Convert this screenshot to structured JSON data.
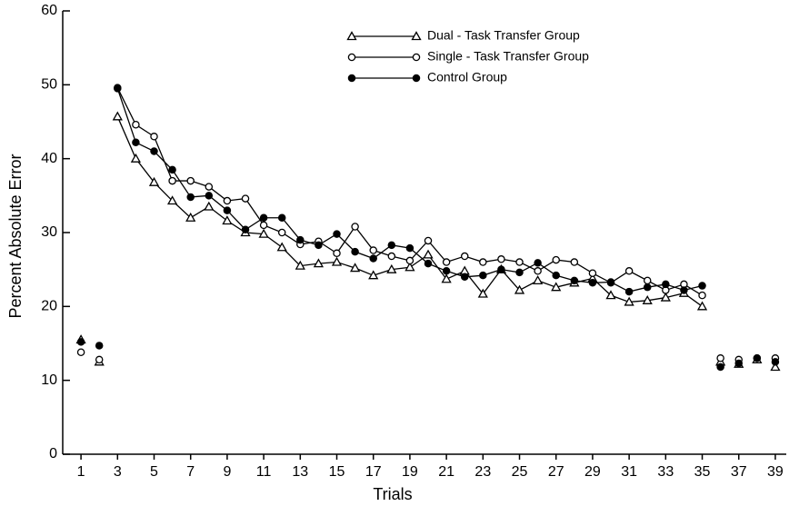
{
  "chart_data": {
    "type": "line",
    "xlabel": "Trials",
    "ylabel": "Percent Absolute Error",
    "x": [
      1,
      null,
      2,
      null,
      3,
      4,
      5,
      6,
      7,
      8,
      9,
      10,
      11,
      12,
      13,
      14,
      15,
      16,
      17,
      18,
      19,
      20,
      21,
      22,
      23,
      24,
      25,
      26,
      27,
      28,
      29,
      30,
      31,
      32,
      33,
      34,
      35,
      null,
      36,
      null,
      37,
      null,
      38,
      null,
      39
    ],
    "series": [
      {
        "name": "Dual - Task Transfer Group",
        "color": "#000000",
        "marker": "triangle",
        "values": [
          15.5,
          null,
          12.5,
          null,
          45.7,
          40,
          36.8,
          34.3,
          32,
          33.5,
          31.6,
          30,
          29.8,
          28,
          25.5,
          25.8,
          26,
          25.2,
          24.2,
          25,
          25.3,
          27,
          23.7,
          24.8,
          21.7,
          25,
          22.2,
          23.5,
          22.6,
          23.2,
          23.8,
          21.5,
          20.6,
          20.8,
          21.2,
          21.8,
          20,
          null,
          12.5,
          null,
          12.2,
          null,
          12.8,
          null,
          11.8
        ]
      },
      {
        "name": "Single - Task Transfer Group",
        "color": "#000000",
        "marker": "circle-open",
        "values": [
          13.8,
          null,
          12.8,
          null,
          49.6,
          44.6,
          43,
          37,
          37,
          36.2,
          34.3,
          34.6,
          31,
          30,
          28.4,
          28.8,
          27.2,
          30.8,
          27.6,
          26.8,
          26.2,
          28.9,
          26,
          26.8,
          26,
          26.4,
          26,
          24.8,
          26.3,
          26,
          24.5,
          23.2,
          24.8,
          23.5,
          22.2,
          23,
          21.5,
          null,
          13,
          null,
          12.8,
          null,
          13,
          null,
          13
        ]
      },
      {
        "name": "Control Group",
        "color": "#000000",
        "marker": "circle-filled",
        "values": [
          15.2,
          null,
          14.7,
          null,
          49.5,
          42.2,
          41,
          38.5,
          34.8,
          35,
          33,
          30.4,
          32,
          32,
          29,
          28.3,
          29.8,
          27.4,
          26.5,
          28.3,
          27.9,
          25.8,
          24.8,
          24,
          24.2,
          25,
          24.6,
          25.9,
          24.2,
          23.5,
          23.2,
          23.3,
          22,
          22.6,
          23,
          22.2,
          22.8,
          null,
          11.8,
          null,
          12.3,
          null,
          13,
          null,
          12.5
        ]
      }
    ],
    "xlim": [
      0,
      39.6
    ],
    "xticks": [
      1,
      3,
      5,
      7,
      9,
      11,
      13,
      15,
      17,
      19,
      21,
      23,
      25,
      27,
      29,
      31,
      33,
      35,
      37,
      39
    ],
    "ylim": [
      0,
      60
    ],
    "yticks": [
      0,
      10,
      20,
      30,
      40,
      50,
      60
    ],
    "legend": "top"
  }
}
